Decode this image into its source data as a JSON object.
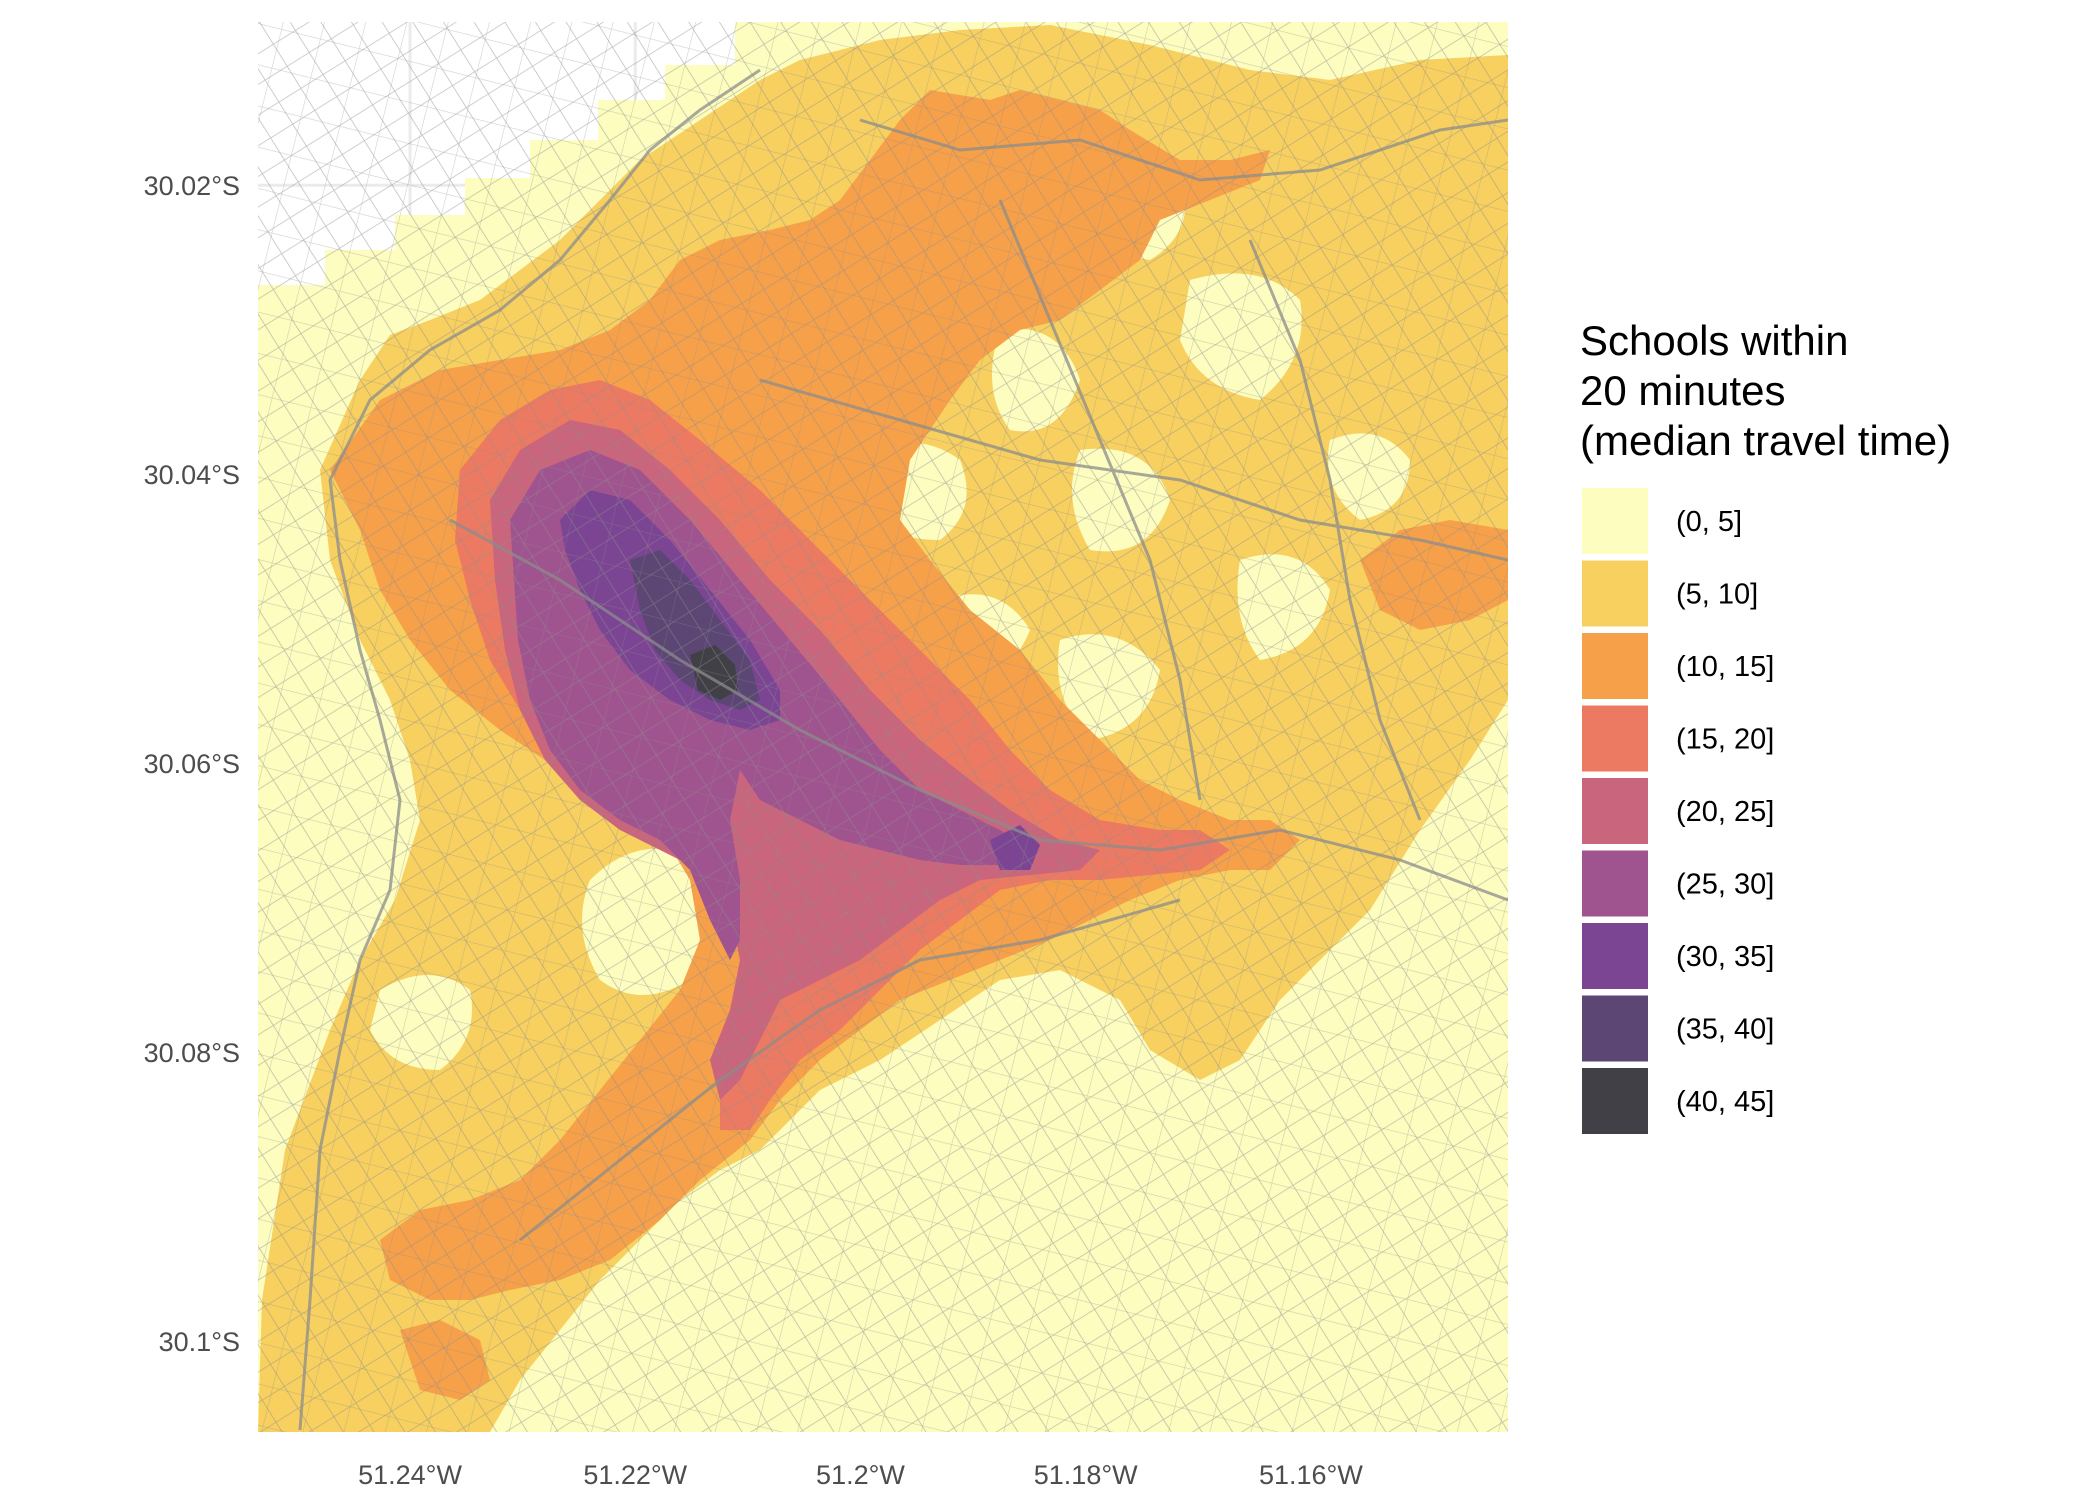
{
  "map": {
    "x_ticks": [
      "51.24°W",
      "51.22°W",
      "51.2°W",
      "51.18°W",
      "51.16°W"
    ],
    "y_ticks": [
      "30.02°S",
      "30.04°S",
      "30.06°S",
      "30.08°S",
      "30.1°S"
    ],
    "x_tick_values": [
      -51.24,
      -51.22,
      -51.2,
      -51.18,
      -51.16
    ],
    "y_tick_values": [
      -30.02,
      -30.04,
      -30.06,
      -30.08,
      -30.1
    ],
    "x_range": [
      -51.2535,
      -51.1425
    ],
    "y_range": [
      -30.0087,
      -30.1063
    ],
    "grid": true,
    "basemap": "street-network-lines",
    "road_color": "#8c8c8c"
  },
  "legend": {
    "title_lines": [
      "Schools within",
      "20 minutes",
      "(median travel time)"
    ],
    "placement": "right",
    "items": [
      {
        "label": "(0, 5]",
        "color": "#fcfdbf"
      },
      {
        "label": "(5, 10]",
        "color": "#f7d060"
      },
      {
        "label": "(10, 15]",
        "color": "#f6a04a"
      },
      {
        "label": "(15, 20]",
        "color": "#ec7a62"
      },
      {
        "label": "(20, 25]",
        "color": "#c9657c"
      },
      {
        "label": "(25, 30]",
        "color": "#a0548f"
      },
      {
        "label": "(30, 35]",
        "color": "#7b4593"
      },
      {
        "label": "(35, 40]",
        "color": "#5b4674"
      },
      {
        "label": "(40, 45]",
        "color": "#424047"
      }
    ]
  }
}
